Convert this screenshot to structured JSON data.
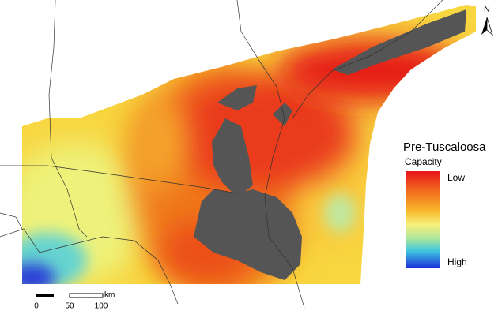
{
  "legend": {
    "title": "Pre-Tuscaloosa",
    "subtitle": "Capacity",
    "low": "Low",
    "high": "High"
  },
  "north_arrow": "N",
  "scale_bar": {
    "labels": [
      0,
      50,
      100
    ],
    "unit": "km"
  }
}
